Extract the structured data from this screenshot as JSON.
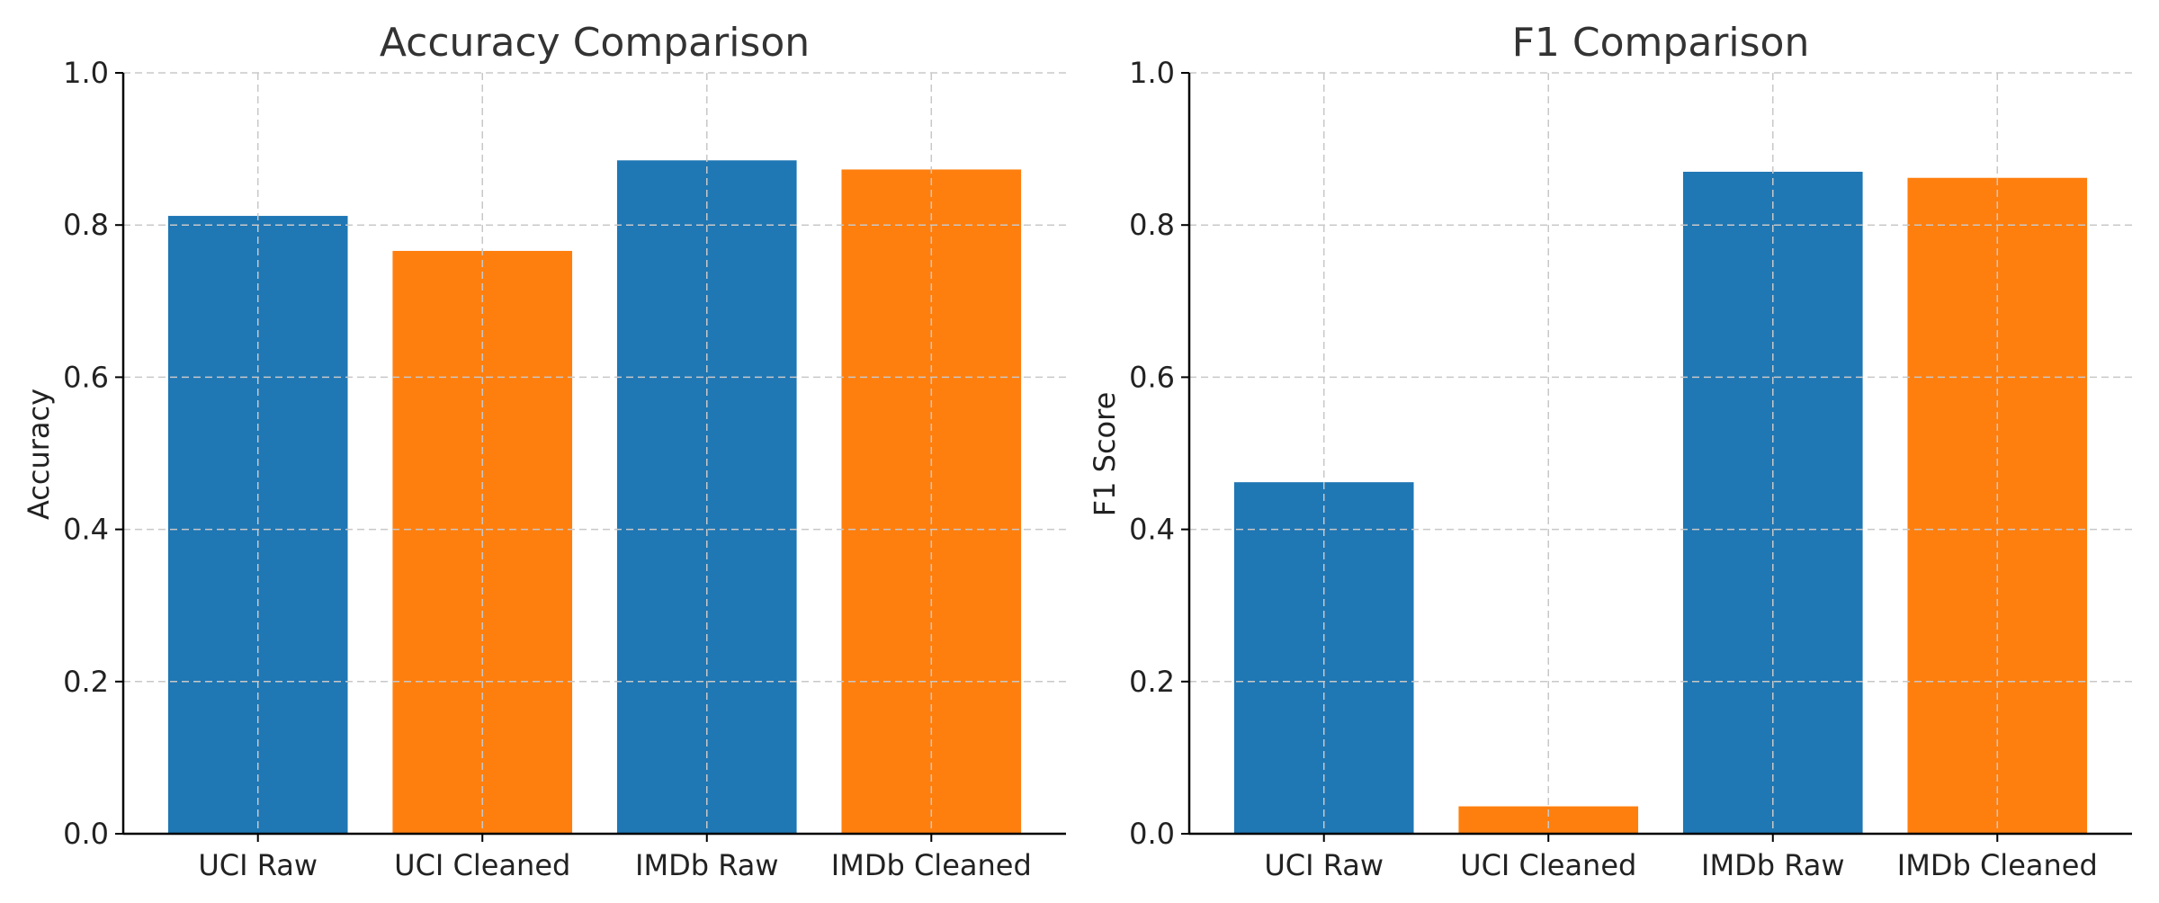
{
  "chart_data": [
    {
      "type": "bar",
      "title": "Accuracy Comparison",
      "xlabel": "",
      "ylabel": "Accuracy",
      "categories": [
        "UCI Raw",
        "UCI Cleaned",
        "IMDb Raw",
        "IMDb Cleaned"
      ],
      "values": [
        0.812,
        0.766,
        0.885,
        0.873
      ],
      "bar_colors": [
        "#1f77b4",
        "#ff7f0e",
        "#1f77b4",
        "#ff7f0e"
      ],
      "ylim": [
        0,
        1.0
      ],
      "yticks": [
        "0.0",
        "0.2",
        "0.4",
        "0.6",
        "0.8",
        "1.0"
      ],
      "grid": true
    },
    {
      "type": "bar",
      "title": "F1 Comparison",
      "xlabel": "",
      "ylabel": "F1 Score",
      "categories": [
        "UCI Raw",
        "UCI Cleaned",
        "IMDb Raw",
        "IMDb Cleaned"
      ],
      "values": [
        0.462,
        0.036,
        0.87,
        0.862
      ],
      "bar_colors": [
        "#1f77b4",
        "#ff7f0e",
        "#1f77b4",
        "#ff7f0e"
      ],
      "ylim": [
        0,
        1.0
      ],
      "yticks": [
        "0.0",
        "0.2",
        "0.4",
        "0.6",
        "0.8",
        "1.0"
      ],
      "grid": true
    }
  ]
}
